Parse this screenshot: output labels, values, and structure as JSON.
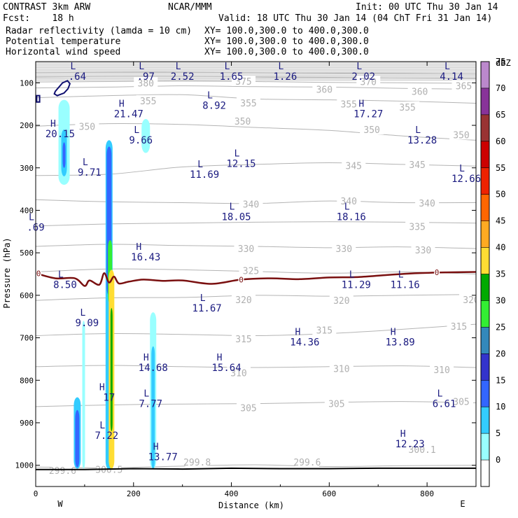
{
  "chart_data": {
    "type": "cross-section",
    "header": {
      "left_title": "CONTRAST  3km ARW",
      "center_title": "NCAR/MMM",
      "init": "Init: 00 UTC Thu 30 Jan 14",
      "fcst": "Fcst:    18 h",
      "valid": "Valid: 18 UTC Thu 30 Jan 14 (04 ChT Fri 31 Jan 14)"
    },
    "fields": [
      {
        "name": "Radar reflectivity (lamda = 10 cm)",
        "xy": "XY= 100.0,300.0 to 400.0,300.0",
        "color": "#000000"
      },
      {
        "name": "Potential temperature",
        "xy": "XY= 100.0,300.0 to 400.0,300.0",
        "color": "#c8c8c8"
      },
      {
        "name": "Horizontal wind speed",
        "xy": "XY= 100.0,300.0 to 400.0,300.0",
        "color": "#101070"
      }
    ],
    "xlabel": "Distance (km)",
    "ylabel": "Pressure (hPa)",
    "xlim": [
      0,
      900
    ],
    "ylim": [
      1050,
      50
    ],
    "xticks": [
      0,
      200,
      400,
      600,
      800
    ],
    "yticks": [
      100,
      200,
      300,
      400,
      500,
      600,
      700,
      800,
      900,
      1000
    ],
    "x_ends": {
      "left": "W",
      "right": "E"
    },
    "colorbar": {
      "unit": "dBZ",
      "levels": [
        0,
        5,
        10,
        15,
        20,
        25,
        30,
        35,
        40,
        45,
        50,
        55,
        60,
        65,
        70,
        75
      ],
      "colors": [
        "#ffffff",
        "#99ffff",
        "#33ccff",
        "#3366ff",
        "#3333cc",
        "#3388bb",
        "#33ee33",
        "#00aa00",
        "#ffdd33",
        "#ffaa22",
        "#ff6600",
        "#ee2200",
        "#cc0000",
        "#993333",
        "#883399",
        "#bb88cc"
      ]
    },
    "theta_contours": [
      {
        "level": 300,
        "y": [
          1004,
          1006,
          1002,
          999,
          1003,
          1001,
          1000
        ]
      },
      {
        "level": 305,
        "y": [
          862,
          858,
          856,
          855,
          852,
          850,
          853
        ]
      },
      {
        "level": 310,
        "y": [
          768,
          765,
          768,
          770,
          768,
          766,
          770
        ]
      },
      {
        "level": 315,
        "y": [
          695,
          690,
          692,
          695,
          690,
          680,
          668
        ]
      },
      {
        "level": 320,
        "y": [
          612,
          606,
          605,
          600,
          602,
          600,
          598
        ]
      },
      {
        "level": 325,
        "y": [
          545,
          538,
          540,
          544,
          548,
          545,
          550
        ]
      },
      {
        "level": 330,
        "y": [
          485,
          480,
          483,
          485,
          488,
          486,
          490
        ]
      },
      {
        "level": 335,
        "y": [
          437,
          432,
          430,
          428,
          427,
          428,
          430
        ]
      },
      {
        "level": 340,
        "y": [
          375,
          380,
          382,
          384,
          378,
          382,
          382
        ]
      },
      {
        "level": 345,
        "y": [
          318,
          315,
          298,
          292,
          288,
          292,
          296
        ]
      },
      {
        "level": 350,
        "y": [
          202,
          196,
          198,
          205,
          212,
          225,
          235
        ]
      },
      {
        "level": 355,
        "y": [
          135,
          130,
          128,
          138,
          140,
          143,
          148
        ]
      },
      {
        "level": 360,
        "y": [
          112,
          110,
          107,
          109,
          110,
          113,
          115
        ]
      },
      {
        "level": 365,
        "y": [
          98,
          97,
          96,
          97,
          99,
          100,
          101
        ]
      },
      {
        "level": 370,
        "y": [
          86,
          85,
          85,
          86,
          87,
          88,
          89
        ]
      },
      {
        "level": 375,
        "y": [
          76,
          75,
          75,
          76,
          77,
          78,
          79
        ]
      }
    ],
    "theta_contour_x": [
      0,
      150,
      300,
      450,
      600,
      750,
      900
    ],
    "theta_labels": [
      {
        "text": "380",
        "x": 225,
        "p": 100
      },
      {
        "text": "375",
        "x": 425,
        "p": 96
      },
      {
        "text": "370",
        "x": 680,
        "p": 97
      },
      {
        "text": "365",
        "x": 875,
        "p": 107
      },
      {
        "text": "360",
        "x": 590,
        "p": 115
      },
      {
        "text": "360",
        "x": 785,
        "p": 120
      },
      {
        "text": "355",
        "x": 230,
        "p": 142
      },
      {
        "text": "355",
        "x": 435,
        "p": 147
      },
      {
        "text": "355",
        "x": 640,
        "p": 150
      },
      {
        "text": "355",
        "x": 760,
        "p": 157
      },
      {
        "text": "350",
        "x": 105,
        "p": 202
      },
      {
        "text": "350",
        "x": 423,
        "p": 190
      },
      {
        "text": "350",
        "x": 687,
        "p": 210
      },
      {
        "text": "350",
        "x": 870,
        "p": 222
      },
      {
        "text": "345",
        "x": 650,
        "p": 295
      },
      {
        "text": "345",
        "x": 780,
        "p": 292
      },
      {
        "text": "340",
        "x": 440,
        "p": 385
      },
      {
        "text": "340",
        "x": 640,
        "p": 378
      },
      {
        "text": "340",
        "x": 800,
        "p": 383
      },
      {
        "text": "335",
        "x": 780,
        "p": 438
      },
      {
        "text": "330",
        "x": 430,
        "p": 490
      },
      {
        "text": "330",
        "x": 630,
        "p": 490
      },
      {
        "text": "330",
        "x": 792,
        "p": 493
      },
      {
        "text": "325",
        "x": 440,
        "p": 542
      },
      {
        "text": "320",
        "x": 425,
        "p": 610
      },
      {
        "text": "320",
        "x": 625,
        "p": 612
      },
      {
        "text": "320",
        "x": 890,
        "p": 610
      },
      {
        "text": "315",
        "x": 425,
        "p": 702
      },
      {
        "text": "315",
        "x": 590,
        "p": 682
      },
      {
        "text": "315",
        "x": 865,
        "p": 673
      },
      {
        "text": "310",
        "x": 415,
        "p": 782
      },
      {
        "text": "310",
        "x": 625,
        "p": 772
      },
      {
        "text": "310",
        "x": 830,
        "p": 775
      },
      {
        "text": "305",
        "x": 435,
        "p": 865
      },
      {
        "text": "305",
        "x": 615,
        "p": 855
      },
      {
        "text": "305",
        "x": 870,
        "p": 850
      },
      {
        "text": "300.1",
        "x": 790,
        "p": 963
      },
      {
        "text": "300.5",
        "x": 150,
        "p": 1010
      },
      {
        "text": "299.8",
        "x": 330,
        "p": 992
      },
      {
        "text": "299.6",
        "x": 555,
        "p": 992
      },
      {
        "text": "299.6",
        "x": 55,
        "p": 1012
      }
    ],
    "zero_isotherm": {
      "label": "0",
      "x": [
        0,
        40,
        80,
        100,
        110,
        130,
        140,
        150,
        160,
        170,
        190,
        220,
        260,
        300,
        360,
        420,
        480,
        540,
        600,
        660,
        720,
        780,
        840,
        900
      ],
      "p": [
        548,
        560,
        560,
        578,
        565,
        575,
        548,
        570,
        556,
        572,
        568,
        563,
        566,
        565,
        573,
        563,
        560,
        562,
        558,
        557,
        552,
        548,
        546,
        545
      ],
      "color": "#7a1010"
    },
    "surface_line": {
      "x": [
        0,
        100,
        200,
        300,
        400,
        500,
        600,
        700,
        800,
        900
      ],
      "p": [
        1010,
        1010,
        1008,
        1009,
        1007,
        1008,
        1008,
        1007,
        1007,
        1007
      ],
      "color": "#000000"
    },
    "reflectivity_features": [
      {
        "x": 58,
        "p_top": 140,
        "p_bottom": 340,
        "width": 16,
        "color": "#99ffff"
      },
      {
        "x": 58,
        "p_top": 210,
        "p_bottom": 320,
        "width": 8,
        "color": "#33ccff"
      },
      {
        "x": 58,
        "p_top": 240,
        "p_bottom": 300,
        "width": 4,
        "color": "#3366ff"
      },
      {
        "x": 225,
        "p_top": 185,
        "p_bottom": 265,
        "width": 12,
        "color": "#99ffff"
      },
      {
        "x": 150,
        "p_top": 235,
        "p_bottom": 1010,
        "width": 10,
        "color": "#33ccff"
      },
      {
        "x": 150,
        "p_top": 250,
        "p_bottom": 600,
        "width": 7,
        "color": "#3366ff"
      },
      {
        "x": 152,
        "p_top": 470,
        "p_bottom": 620,
        "width": 6,
        "color": "#33ee33"
      },
      {
        "x": 155,
        "p_top": 540,
        "p_bottom": 1008,
        "width": 8,
        "color": "#ffdd33"
      },
      {
        "x": 155,
        "p_top": 630,
        "p_bottom": 920,
        "width": 3,
        "color": "#00aa00"
      },
      {
        "x": 240,
        "p_top": 640,
        "p_bottom": 1008,
        "width": 9,
        "color": "#99ffff"
      },
      {
        "x": 240,
        "p_top": 720,
        "p_bottom": 1008,
        "width": 5,
        "color": "#33ccff"
      },
      {
        "x": 85,
        "p_top": 840,
        "p_bottom": 1008,
        "width": 10,
        "color": "#33ccff"
      },
      {
        "x": 85,
        "p_top": 870,
        "p_bottom": 1005,
        "width": 6,
        "color": "#3366ff"
      },
      {
        "x": 98,
        "p_top": 660,
        "p_bottom": 1008,
        "width": 4,
        "color": "#99ffff"
      }
    ],
    "reflectivity_outlines": [
      {
        "x": [
          40,
          55,
          65,
          70,
          66,
          58,
          44,
          38,
          40
        ],
        "p": [
          120,
          100,
          95,
          102,
          114,
          124,
          130,
          126,
          120
        ],
        "color": "#101070"
      },
      {
        "x": [
          2,
          8,
          8,
          2
        ],
        "p": [
          130,
          130,
          145,
          145
        ],
        "color": "#101070"
      }
    ],
    "wind_annotations": [
      {
        "hl": "L",
        "value": ".64",
        "x": 85,
        "p": 75
      },
      {
        "hl": "L",
        "value": ".97",
        "x": 225,
        "p": 75
      },
      {
        "hl": "L",
        "value": "2.52",
        "x": 300,
        "p": 75
      },
      {
        "hl": "L",
        "value": "1.65",
        "x": 400,
        "p": 75
      },
      {
        "hl": "L",
        "value": "1.26",
        "x": 510,
        "p": 75
      },
      {
        "hl": "L",
        "value": "2.02",
        "x": 670,
        "p": 75
      },
      {
        "hl": "L",
        "value": "4.14",
        "x": 850,
        "p": 75
      },
      {
        "hl": "L",
        "value": "8.92",
        "x": 365,
        "p": 143
      },
      {
        "hl": "H",
        "value": "21.47",
        "x": 190,
        "p": 163
      },
      {
        "hl": "H",
        "value": "17.27",
        "x": 680,
        "p": 163
      },
      {
        "hl": "H",
        "value": "20.15",
        "x": 50,
        "p": 210
      },
      {
        "hl": "L",
        "value": "9.66",
        "x": 215,
        "p": 225
      },
      {
        "hl": "L",
        "value": "13.28",
        "x": 790,
        "p": 225
      },
      {
        "hl": "L",
        "value": "12.15",
        "x": 420,
        "p": 280
      },
      {
        "hl": "L",
        "value": "9.71",
        "x": 110,
        "p": 300
      },
      {
        "hl": "L",
        "value": "11.69",
        "x": 345,
        "p": 305
      },
      {
        "hl": "L",
        "value": "12.66",
        "x": 880,
        "p": 315
      },
      {
        "hl": "L",
        "value": "18.05",
        "x": 410,
        "p": 405
      },
      {
        "hl": "L",
        "value": "18.16",
        "x": 645,
        "p": 405
      },
      {
        "hl": "L",
        "value": ".69",
        "x": 0,
        "p": 430
      },
      {
        "hl": "H",
        "value": "16.43",
        "x": 225,
        "p": 500
      },
      {
        "hl": "L",
        "value": "8.50",
        "x": 60,
        "p": 565
      },
      {
        "hl": "L",
        "value": "11.29",
        "x": 655,
        "p": 565
      },
      {
        "hl": "L",
        "value": "11.16",
        "x": 755,
        "p": 565
      },
      {
        "hl": "L",
        "value": "11.67",
        "x": 350,
        "p": 620
      },
      {
        "hl": "L",
        "value": "9.09",
        "x": 105,
        "p": 655
      },
      {
        "hl": "H",
        "value": "14.36",
        "x": 550,
        "p": 700
      },
      {
        "hl": "H",
        "value": "13.89",
        "x": 745,
        "p": 700
      },
      {
        "hl": "H",
        "value": "14.68",
        "x": 240,
        "p": 760
      },
      {
        "hl": "H",
        "value": "15.64",
        "x": 390,
        "p": 760
      },
      {
        "hl": "H",
        "value": "17",
        "x": 150,
        "p": 830
      },
      {
        "hl": "L",
        "value": "7.77",
        "x": 235,
        "p": 845
      },
      {
        "hl": "L",
        "value": "6.61",
        "x": 835,
        "p": 845
      },
      {
        "hl": "L",
        "value": "7.22",
        "x": 145,
        "p": 920
      },
      {
        "hl": "H",
        "value": "12.23",
        "x": 765,
        "p": 940
      },
      {
        "hl": "H",
        "value": "13.77",
        "x": 260,
        "p": 970
      }
    ]
  }
}
